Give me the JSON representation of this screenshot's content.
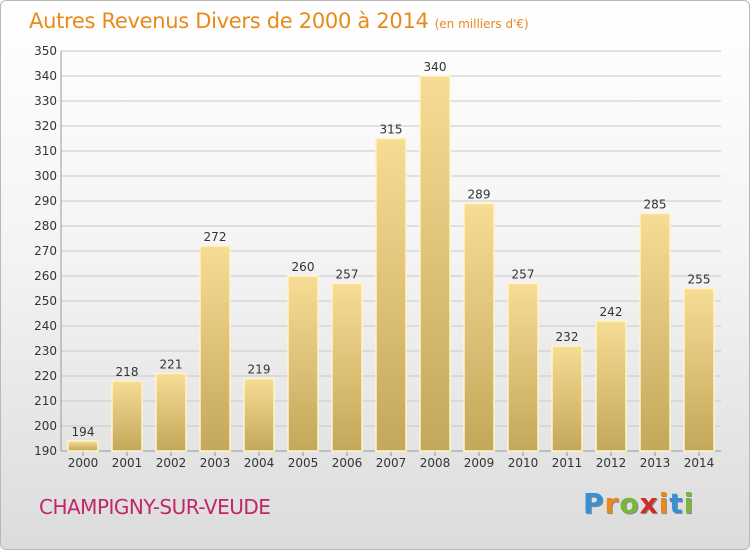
{
  "title": "Autres Revenus Divers de 2000 à 2014",
  "unit": "(en milliers d'€)",
  "location": "CHAMPIGNY-SUR-VEUDE",
  "logo": {
    "letters": [
      "P",
      "r",
      "o",
      "x",
      "i",
      "t",
      "i"
    ],
    "colors": [
      "#3a8fd4",
      "#e8891a",
      "#7ab63a",
      "#d12b2b",
      "#e8891a",
      "#3a8fd4",
      "#7ab63a"
    ]
  },
  "colors": {
    "bar_top": "#f7dc95",
    "bar_bottom": "#c3a75a",
    "bar_stroke": "#fff4c8",
    "grid": "#c8c8c8",
    "title": "#e8891a",
    "location": "#c2256b"
  },
  "chart_data": {
    "type": "bar",
    "title": "Autres Revenus Divers de 2000 à 2014",
    "subtitle": "(en milliers d'€)",
    "xlabel": "",
    "ylabel": "",
    "categories": [
      "2000",
      "2001",
      "2002",
      "2003",
      "2004",
      "2005",
      "2006",
      "2007",
      "2008",
      "2009",
      "2010",
      "2011",
      "2012",
      "2013",
      "2014"
    ],
    "values": [
      194,
      218,
      221,
      272,
      219,
      260,
      257,
      315,
      340,
      289,
      257,
      232,
      242,
      285,
      255
    ],
    "ylim": [
      190,
      350
    ],
    "yticks": [
      190,
      200,
      210,
      220,
      230,
      240,
      250,
      260,
      270,
      280,
      290,
      300,
      310,
      320,
      330,
      340,
      350
    ],
    "grid": true,
    "data_labels": true
  }
}
